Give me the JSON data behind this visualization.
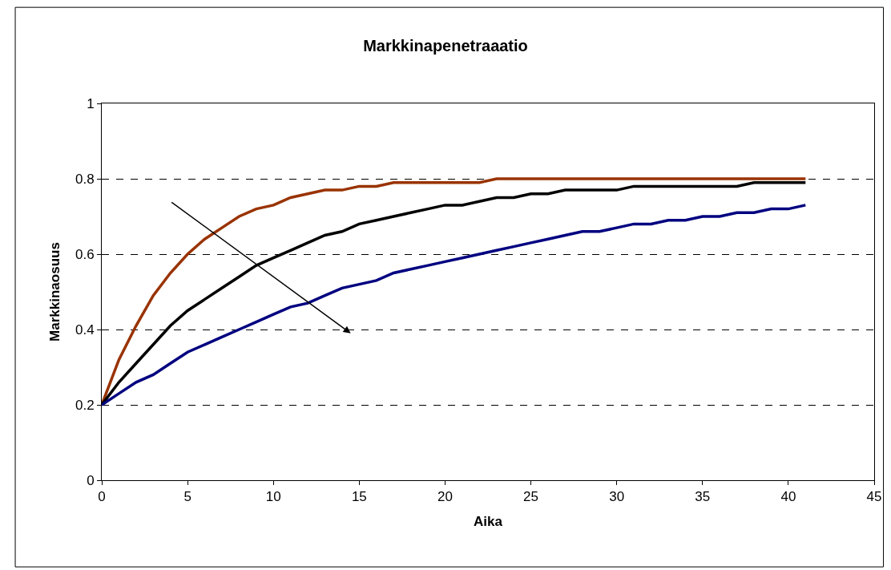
{
  "chart_data": {
    "type": "line",
    "title": "Markkinapenetraaatio",
    "xlabel": "Aika",
    "ylabel": "Markkinaosuus",
    "x": [
      0,
      1,
      2,
      3,
      4,
      5,
      6,
      7,
      8,
      9,
      10,
      11,
      12,
      13,
      14,
      15,
      16,
      17,
      18,
      19,
      20,
      21,
      22,
      23,
      24,
      25,
      26,
      27,
      28,
      29,
      30,
      31,
      32,
      33,
      34,
      35,
      36,
      37,
      38,
      39,
      40,
      41
    ],
    "series": [
      {
        "color": "#993300",
        "values": [
          0.2,
          0.32,
          0.41,
          0.49,
          0.55,
          0.6,
          0.64,
          0.67,
          0.7,
          0.72,
          0.73,
          0.75,
          0.76,
          0.77,
          0.77,
          0.78,
          0.78,
          0.79,
          0.79,
          0.79,
          0.79,
          0.79,
          0.79,
          0.8,
          0.8,
          0.8,
          0.8,
          0.8,
          0.8,
          0.8,
          0.8,
          0.8,
          0.8,
          0.8,
          0.8,
          0.8,
          0.8,
          0.8,
          0.8,
          0.8,
          0.8,
          0.8
        ]
      },
      {
        "color": "#000000",
        "values": [
          0.2,
          0.26,
          0.31,
          0.36,
          0.41,
          0.45,
          0.48,
          0.51,
          0.54,
          0.57,
          0.59,
          0.61,
          0.63,
          0.65,
          0.66,
          0.68,
          0.69,
          0.7,
          0.71,
          0.72,
          0.73,
          0.73,
          0.74,
          0.75,
          0.75,
          0.76,
          0.76,
          0.77,
          0.77,
          0.77,
          0.77,
          0.78,
          0.78,
          0.78,
          0.78,
          0.78,
          0.78,
          0.78,
          0.79,
          0.79,
          0.79,
          0.79
        ]
      },
      {
        "color": "#000080",
        "values": [
          0.2,
          0.23,
          0.26,
          0.28,
          0.31,
          0.34,
          0.36,
          0.38,
          0.4,
          0.42,
          0.44,
          0.46,
          0.47,
          0.49,
          0.51,
          0.52,
          0.53,
          0.55,
          0.56,
          0.57,
          0.58,
          0.59,
          0.6,
          0.61,
          0.62,
          0.63,
          0.64,
          0.65,
          0.66,
          0.66,
          0.67,
          0.68,
          0.68,
          0.69,
          0.69,
          0.7,
          0.7,
          0.71,
          0.71,
          0.72,
          0.72,
          0.73
        ]
      }
    ],
    "xlim": [
      0,
      45
    ],
    "xticks": [
      0,
      5,
      10,
      15,
      20,
      25,
      30,
      35,
      40,
      45
    ],
    "ylim": [
      0,
      1
    ],
    "yticks": [
      0,
      0.2,
      0.4,
      0.6,
      0.8,
      1
    ],
    "grid": "y",
    "marker": "none",
    "line_style": "solid"
  }
}
